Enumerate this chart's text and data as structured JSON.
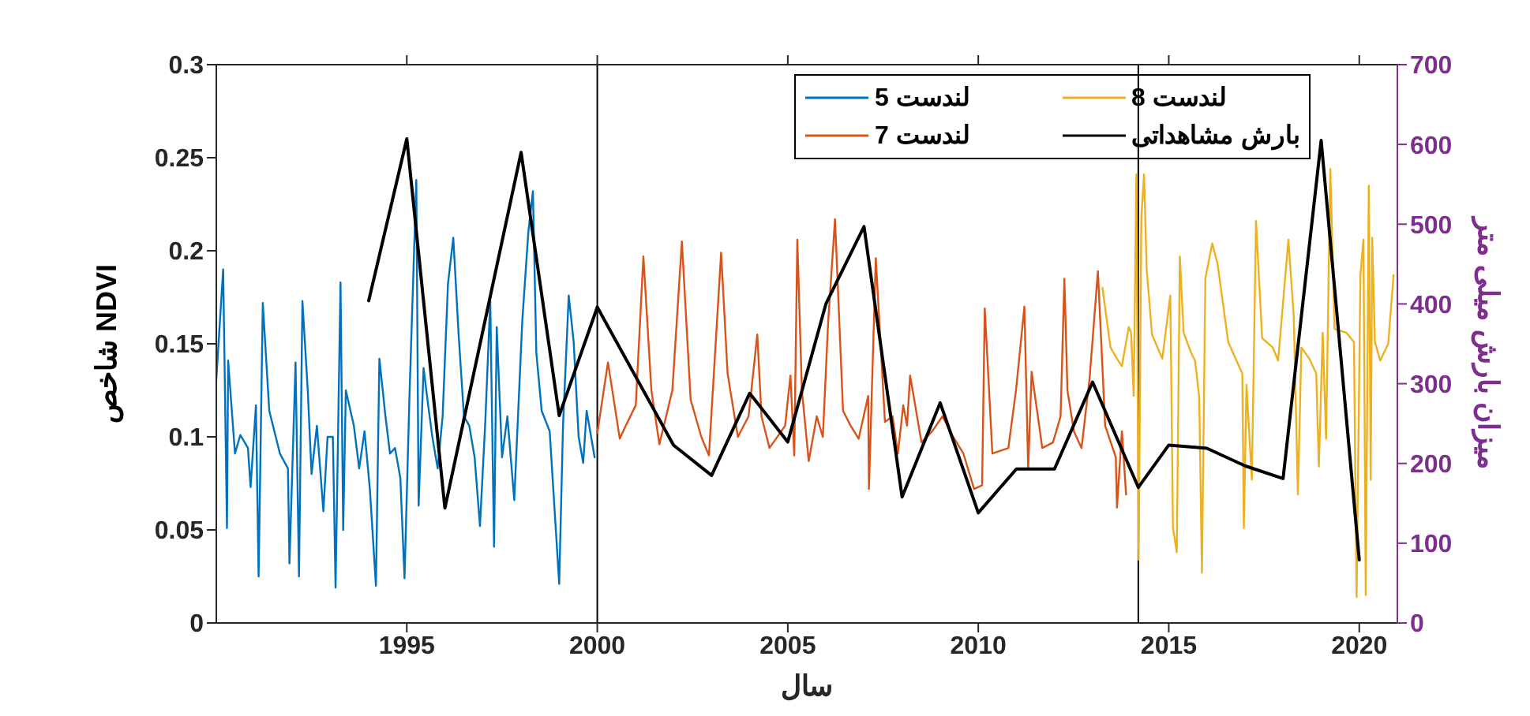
{
  "chart_data": {
    "type": "line",
    "xlabel": "سال",
    "ylabel": "شاخص NDVI",
    "y2label": "میزان بارش میلی متر",
    "xlim": [
      1990,
      2021
    ],
    "xticks": [
      1995,
      2000,
      2005,
      2010,
      2015,
      2020
    ],
    "ylim": [
      0,
      0.3
    ],
    "yticks": [
      0,
      0.05,
      0.1,
      0.15,
      0.2,
      0.25,
      0.3
    ],
    "y2lim": [
      0,
      700
    ],
    "y2ticks": [
      0,
      100,
      200,
      300,
      400,
      500,
      600,
      700
    ],
    "legend": "top right",
    "grid": false,
    "marker": "none",
    "line_style": "solid",
    "ref_lines": [
      {
        "axis": "x",
        "value": 2000,
        "color": "#000000"
      },
      {
        "axis": "x",
        "value": 2014.2,
        "color": "#000000"
      }
    ],
    "series": [
      {
        "name": "لندست 5",
        "color": "#0072bd",
        "x": [
          1990.0,
          1990.18,
          1990.28,
          1990.31,
          1990.49,
          1990.63,
          1990.83,
          1990.9,
          1991.04,
          1991.11,
          1991.22,
          1991.39,
          1991.67,
          1991.88,
          1991.92,
          1992.08,
          1992.17,
          1992.26,
          1992.4,
          1992.5,
          1992.64,
          1992.81,
          1992.92,
          1993.06,
          1993.13,
          1993.26,
          1993.33,
          1993.4,
          1993.61,
          1993.75,
          1993.89,
          1994.03,
          1994.19,
          1994.28,
          1994.44,
          1994.56,
          1994.69,
          1994.83,
          1994.94,
          1995.07,
          1995.25,
          1995.31,
          1995.44,
          1995.56,
          1995.67,
          1995.81,
          1995.94,
          1996.08,
          1996.22,
          1996.36,
          1996.5,
          1996.64,
          1996.78,
          1996.92,
          1997.06,
          1997.19,
          1997.29,
          1997.36,
          1997.5,
          1997.64,
          1997.82,
          1998.03,
          1998.19,
          1998.31,
          1998.4,
          1998.54,
          1998.75,
          1999.0,
          1999.1,
          1999.25,
          1999.38,
          1999.51,
          1999.63,
          1999.72,
          1999.93
        ],
        "values": [
          0.131,
          0.19,
          0.051,
          0.141,
          0.091,
          0.101,
          0.094,
          0.073,
          0.117,
          0.025,
          0.172,
          0.114,
          0.091,
          0.083,
          0.032,
          0.14,
          0.025,
          0.173,
          0.125,
          0.08,
          0.106,
          0.06,
          0.1,
          0.1,
          0.019,
          0.183,
          0.05,
          0.125,
          0.106,
          0.083,
          0.103,
          0.072,
          0.02,
          0.142,
          0.111,
          0.091,
          0.094,
          0.078,
          0.024,
          0.122,
          0.238,
          0.063,
          0.137,
          0.117,
          0.1,
          0.083,
          0.111,
          0.182,
          0.207,
          0.155,
          0.111,
          0.106,
          0.089,
          0.052,
          0.108,
          0.173,
          0.041,
          0.159,
          0.089,
          0.111,
          0.066,
          0.162,
          0.21,
          0.232,
          0.145,
          0.114,
          0.103,
          0.021,
          0.106,
          0.176,
          0.151,
          0.1,
          0.086,
          0.114,
          0.089
        ]
      },
      {
        "name": "لندست 8",
        "color": "#edb120",
        "x": [
          2013.26,
          2013.47,
          2013.64,
          2013.77,
          2013.95,
          2014.01,
          2014.08,
          2014.15,
          2014.21,
          2014.28,
          2014.35,
          2014.42,
          2014.56,
          2014.83,
          2015.04,
          2015.11,
          2015.21,
          2015.29,
          2015.39,
          2015.59,
          2015.69,
          2015.8,
          2015.87,
          2015.96,
          2016.14,
          2016.28,
          2016.56,
          2016.93,
          2016.97,
          2017.04,
          2017.18,
          2017.29,
          2017.45,
          2017.73,
          2017.87,
          2018.14,
          2018.28,
          2018.39,
          2018.48,
          2018.69,
          2018.87,
          2018.94,
          2019.04,
          2019.13,
          2019.24,
          2019.35,
          2019.66,
          2019.86,
          2019.93,
          2020.03,
          2020.11,
          2020.17,
          2020.25,
          2020.3,
          2020.34,
          2020.41,
          2020.55,
          2020.76,
          2020.9
        ],
        "values": [
          0.18,
          0.148,
          0.142,
          0.138,
          0.159,
          0.156,
          0.122,
          0.241,
          0.034,
          0.218,
          0.241,
          0.19,
          0.155,
          0.142,
          0.176,
          0.051,
          0.038,
          0.197,
          0.156,
          0.145,
          0.141,
          0.121,
          0.027,
          0.185,
          0.204,
          0.193,
          0.151,
          0.134,
          0.051,
          0.128,
          0.077,
          0.216,
          0.153,
          0.148,
          0.141,
          0.206,
          0.165,
          0.069,
          0.148,
          0.142,
          0.134,
          0.084,
          0.156,
          0.099,
          0.244,
          0.158,
          0.156,
          0.151,
          0.014,
          0.187,
          0.206,
          0.015,
          0.235,
          0.077,
          0.207,
          0.151,
          0.141,
          0.15,
          0.187
        ]
      },
      {
        "name": "لندست 7",
        "color": "#d95319",
        "x": [
          2000.0,
          2000.28,
          2000.59,
          2000.77,
          2001.01,
          2001.21,
          2001.42,
          2001.63,
          2001.97,
          2002.22,
          2002.45,
          2002.73,
          2002.93,
          2003.25,
          2003.42,
          2003.69,
          2003.97,
          2004.2,
          2004.31,
          2004.52,
          2004.93,
          2005.07,
          2005.17,
          2005.25,
          2005.37,
          2005.55,
          2005.76,
          2005.92,
          2006.06,
          2006.24,
          2006.45,
          2006.65,
          2006.86,
          2007.11,
          2007.13,
          2007.31,
          2007.55,
          2007.75,
          2007.89,
          2008.03,
          2008.13,
          2008.21,
          2008.51,
          2008.79,
          2009.06,
          2009.34,
          2009.61,
          2009.89,
          2010.1,
          2010.17,
          2010.37,
          2010.79,
          2010.99,
          2011.21,
          2011.31,
          2011.4,
          2011.68,
          2011.96,
          2012.16,
          2012.26,
          2012.34,
          2012.51,
          2012.71,
          2012.92,
          2013.14,
          2013.33,
          2013.61,
          2013.64,
          2013.77,
          2013.88
        ],
        "values": [
          0.102,
          0.14,
          0.099,
          0.107,
          0.117,
          0.197,
          0.125,
          0.096,
          0.125,
          0.205,
          0.12,
          0.1,
          0.09,
          0.199,
          0.134,
          0.1,
          0.111,
          0.155,
          0.111,
          0.094,
          0.106,
          0.133,
          0.09,
          0.206,
          0.125,
          0.087,
          0.111,
          0.1,
          0.162,
          0.217,
          0.114,
          0.106,
          0.099,
          0.122,
          0.072,
          0.196,
          0.108,
          0.111,
          0.091,
          0.117,
          0.106,
          0.133,
          0.097,
          0.103,
          0.111,
          0.1,
          0.091,
          0.072,
          0.074,
          0.169,
          0.091,
          0.094,
          0.125,
          0.17,
          0.083,
          0.135,
          0.094,
          0.097,
          0.111,
          0.185,
          0.125,
          0.103,
          0.094,
          0.131,
          0.189,
          0.106,
          0.089,
          0.062,
          0.103,
          0.069
        ]
      },
      {
        "name": "بارش مشاهداتی",
        "color": "#000000",
        "axis": "y2",
        "x": [
          1994,
          1995,
          1996,
          1998,
          1999,
          2000,
          2002,
          2003,
          2004,
          2005,
          2006,
          2007,
          2008,
          2009,
          2010,
          2011,
          2012,
          2013,
          2014.2,
          2015,
          2016,
          2017,
          2018,
          2019,
          2020
        ],
        "values": [
          404,
          607,
          144,
          590,
          260,
          396,
          223,
          185,
          288,
          227,
          400,
          497,
          158,
          276,
          138,
          193,
          193,
          302,
          170,
          223,
          219,
          197,
          181,
          605,
          79
        ]
      }
    ]
  }
}
